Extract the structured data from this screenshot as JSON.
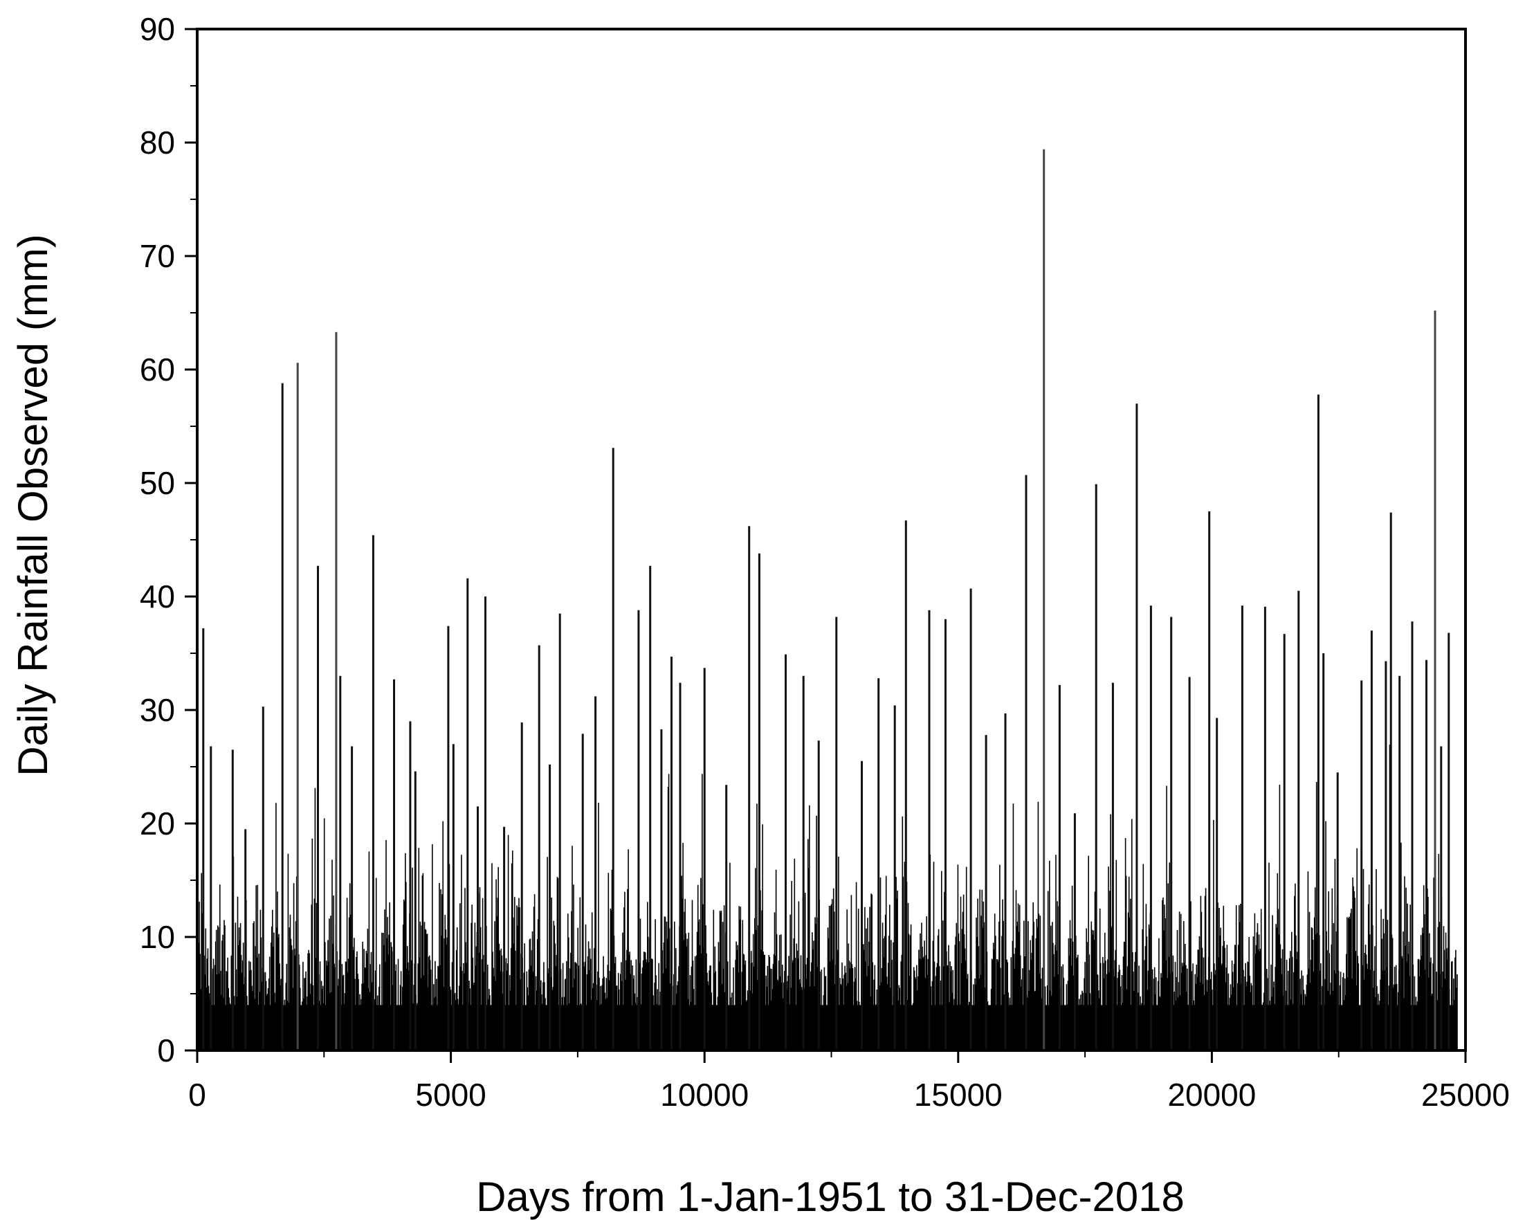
{
  "chart_data": {
    "type": "bar",
    "title": "",
    "xlabel": "Days from 1-Jan-1951 to 31-Dec-2018",
    "ylabel": "Daily Rainfall Observed (mm)",
    "xlim": [
      0,
      25000
    ],
    "ylim": [
      0,
      90
    ],
    "xticks": [
      0,
      5000,
      10000,
      15000,
      20000,
      25000
    ],
    "yticks": [
      0,
      10,
      20,
      30,
      40,
      50,
      60,
      70,
      80,
      90
    ],
    "grid": false,
    "legend": "none",
    "bar_color": "#000000",
    "peaks": [
      {
        "day": 120,
        "value": 37.2
      },
      {
        "day": 270,
        "value": 26.8
      },
      {
        "day": 700,
        "value": 26.5
      },
      {
        "day": 950,
        "value": 19.5
      },
      {
        "day": 1300,
        "value": 30.3
      },
      {
        "day": 1680,
        "value": 58.8
      },
      {
        "day": 1980,
        "value": 60.6
      },
      {
        "day": 2380,
        "value": 42.7
      },
      {
        "day": 2740,
        "value": 63.3
      },
      {
        "day": 2820,
        "value": 33.0
      },
      {
        "day": 3050,
        "value": 26.8
      },
      {
        "day": 3470,
        "value": 45.4
      },
      {
        "day": 3880,
        "value": 32.7
      },
      {
        "day": 4200,
        "value": 29.0
      },
      {
        "day": 4300,
        "value": 24.6
      },
      {
        "day": 4950,
        "value": 37.4
      },
      {
        "day": 5050,
        "value": 27.0
      },
      {
        "day": 5330,
        "value": 41.6
      },
      {
        "day": 5530,
        "value": 21.5
      },
      {
        "day": 5680,
        "value": 40.0
      },
      {
        "day": 6050,
        "value": 19.7
      },
      {
        "day": 6400,
        "value": 28.9
      },
      {
        "day": 6740,
        "value": 35.7
      },
      {
        "day": 6950,
        "value": 25.2
      },
      {
        "day": 7150,
        "value": 38.5
      },
      {
        "day": 7600,
        "value": 27.9
      },
      {
        "day": 7850,
        "value": 31.2
      },
      {
        "day": 8200,
        "value": 53.1
      },
      {
        "day": 8700,
        "value": 38.8
      },
      {
        "day": 8930,
        "value": 42.7
      },
      {
        "day": 9150,
        "value": 28.3
      },
      {
        "day": 9350,
        "value": 34.7
      },
      {
        "day": 9520,
        "value": 32.4
      },
      {
        "day": 10000,
        "value": 33.7
      },
      {
        "day": 10430,
        "value": 23.4
      },
      {
        "day": 10880,
        "value": 46.2
      },
      {
        "day": 11080,
        "value": 43.8
      },
      {
        "day": 11600,
        "value": 34.9
      },
      {
        "day": 11950,
        "value": 33.0
      },
      {
        "day": 12250,
        "value": 27.3
      },
      {
        "day": 12600,
        "value": 38.2
      },
      {
        "day": 13100,
        "value": 25.5
      },
      {
        "day": 13430,
        "value": 32.8
      },
      {
        "day": 13750,
        "value": 30.4
      },
      {
        "day": 13970,
        "value": 46.7
      },
      {
        "day": 14430,
        "value": 38.8
      },
      {
        "day": 14750,
        "value": 38.0
      },
      {
        "day": 15250,
        "value": 40.7
      },
      {
        "day": 15550,
        "value": 27.8
      },
      {
        "day": 15930,
        "value": 29.7
      },
      {
        "day": 16340,
        "value": 50.7
      },
      {
        "day": 16690,
        "value": 79.4
      },
      {
        "day": 17000,
        "value": 32.2
      },
      {
        "day": 17300,
        "value": 20.9
      },
      {
        "day": 17720,
        "value": 49.9
      },
      {
        "day": 18050,
        "value": 32.4
      },
      {
        "day": 18520,
        "value": 57.0
      },
      {
        "day": 18800,
        "value": 39.2
      },
      {
        "day": 19200,
        "value": 38.2
      },
      {
        "day": 19560,
        "value": 32.9
      },
      {
        "day": 19950,
        "value": 47.5
      },
      {
        "day": 20100,
        "value": 29.3
      },
      {
        "day": 20600,
        "value": 39.2
      },
      {
        "day": 21050,
        "value": 39.1
      },
      {
        "day": 21430,
        "value": 36.7
      },
      {
        "day": 21710,
        "value": 40.5
      },
      {
        "day": 22100,
        "value": 57.8
      },
      {
        "day": 22200,
        "value": 35.0
      },
      {
        "day": 22480,
        "value": 24.5
      },
      {
        "day": 22950,
        "value": 32.6
      },
      {
        "day": 23150,
        "value": 37.0
      },
      {
        "day": 23430,
        "value": 34.3
      },
      {
        "day": 23530,
        "value": 47.4
      },
      {
        "day": 23700,
        "value": 33.0
      },
      {
        "day": 23950,
        "value": 37.8
      },
      {
        "day": 24230,
        "value": 34.4
      },
      {
        "day": 24400,
        "value": 65.2
      },
      {
        "day": 24520,
        "value": 26.8
      },
      {
        "day": 24670,
        "value": 36.8
      }
    ]
  }
}
